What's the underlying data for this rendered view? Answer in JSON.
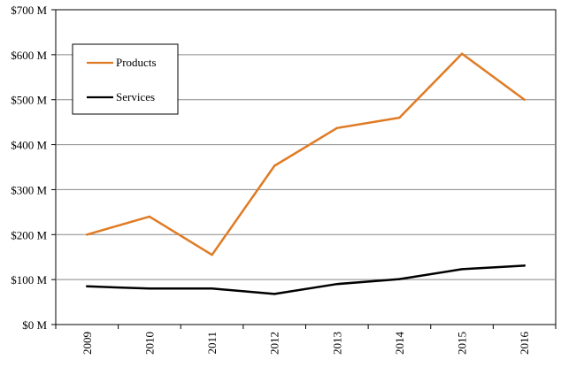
{
  "chart_data": {
    "type": "line",
    "title": "",
    "xlabel": "",
    "ylabel": "",
    "categories": [
      "2009",
      "2010",
      "2011",
      "2012",
      "2013",
      "2014",
      "2015",
      "2016"
    ],
    "ylim": [
      0,
      700
    ],
    "y_ticks": [
      0,
      100,
      200,
      300,
      400,
      500,
      600,
      700
    ],
    "y_tick_labels": [
      "$0 M",
      "$100 M",
      "$200 M",
      "$300 M",
      "$400 M",
      "$500 M",
      "$600 M",
      "$700 M"
    ],
    "grid": true,
    "legend_position": "top-left",
    "series": [
      {
        "name": "Products",
        "color": "#e07b24",
        "values": [
          200,
          240,
          155,
          353,
          437,
          460,
          602,
          500
        ]
      },
      {
        "name": "Services",
        "color": "#000000",
        "values": [
          85,
          80,
          80,
          68,
          90,
          101,
          123,
          131
        ]
      }
    ]
  }
}
